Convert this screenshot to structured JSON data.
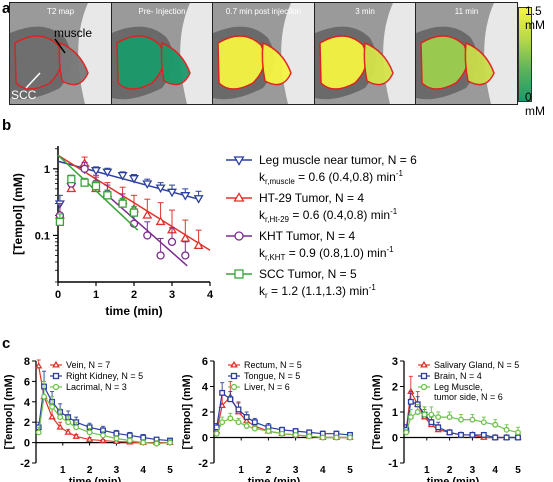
{
  "panel_a": {
    "letter": "a",
    "frames": [
      {
        "label": "T2 map"
      },
      {
        "label": "Pre- Injection"
      },
      {
        "label": "0.7 min post injection"
      },
      {
        "label": "3 min"
      },
      {
        "label": "11 min"
      }
    ],
    "annotations": {
      "muscle": "muscle",
      "scc": "SCC"
    },
    "colorbar": {
      "max_label": "1.5 mM",
      "min_label": "0 mM",
      "colors": [
        "#1a9a6a",
        "#f5f542"
      ]
    }
  },
  "panel_b": {
    "letter": "b",
    "chart_data": {
      "type": "scatter",
      "xlabel": "time (min)",
      "ylabel": "[Tempol] (mM)",
      "xlim": [
        0,
        4
      ],
      "ylim": [
        0.02,
        2.2
      ],
      "yscale": "log",
      "xticks": [
        "0",
        "1",
        "2",
        "3",
        "4"
      ],
      "yticks": [
        {
          "label": "1",
          "v": 1
        },
        {
          "label": "0.1",
          "v": 0.1
        }
      ],
      "series": [
        {
          "name": "Leg muscle near tumor, N = 6",
          "rate": "k",
          "rate_sub": "r,muscle",
          "rate_val": " = 0.6 (0.4,0.8) min",
          "rate_sup": "-1",
          "color": "#2b3f9e",
          "marker": "tri-down",
          "x": [
            0.05,
            0.35,
            0.7,
            1.0,
            1.3,
            1.7,
            2.0,
            2.35,
            2.7,
            3.0,
            3.35,
            3.7
          ],
          "y": [
            0.3,
            0.55,
            1.0,
            0.95,
            0.9,
            0.8,
            0.72,
            0.6,
            0.52,
            0.45,
            0.4,
            0.36
          ],
          "err": [
            0.1,
            0.15,
            0.15,
            0.12,
            0.12,
            0.1,
            0.1,
            0.1,
            0.1,
            0.12,
            0.1,
            0.1
          ],
          "fit": [
            [
              0.0,
              1.3
            ],
            [
              3.7,
              0.35
            ]
          ]
        },
        {
          "name": "HT-29 Tumor, N = 4",
          "rate": "k",
          "rate_sub": "r,Ht-29",
          "rate_val": " = 0.6 (0.4,0.8) min",
          "rate_sup": "-1",
          "color": "#e0322a",
          "marker": "tri-up",
          "x": [
            0.05,
            0.35,
            0.7,
            1.0,
            1.3,
            1.7,
            2.0,
            2.35,
            2.7,
            3.0,
            3.35,
            3.7
          ],
          "y": [
            0.2,
            0.5,
            1.2,
            0.5,
            0.42,
            0.33,
            0.25,
            0.2,
            0.16,
            0.12,
            0.09,
            0.07
          ],
          "err": [
            0.1,
            0.15,
            0.3,
            0.25,
            0.2,
            0.2,
            0.15,
            0.15,
            0.15,
            0.12,
            0.08,
            0.05
          ],
          "fit": [
            [
              0.0,
              1.6
            ],
            [
              4.0,
              0.06
            ]
          ]
        },
        {
          "name": "KHT Tumor, N = 4",
          "rate": "k",
          "rate_sub": "r,KHT",
          "rate_val": " = 0.9 (0.8,1.0) min",
          "rate_sup": "-1",
          "color": "#7b2d8e",
          "marker": "circle",
          "x": [
            0.05,
            0.35,
            0.7,
            1.0,
            1.3,
            1.7,
            2.0,
            2.35,
            2.7,
            3.0,
            3.35
          ],
          "y": [
            0.2,
            0.6,
            1.0,
            0.6,
            0.42,
            0.3,
            0.15,
            0.1,
            0.05,
            0.08,
            0.05
          ],
          "err": [
            0.1,
            0.2,
            0.25,
            0.2,
            0.15,
            0.12,
            0.08,
            0.06,
            0.04,
            0.05,
            0.03
          ],
          "fit": [
            [
              1.3,
              0.4
            ],
            [
              3.4,
              0.035
            ]
          ]
        },
        {
          "name": "SCC Tumor, N = 5",
          "rate": "k",
          "rate_sub": "r",
          "rate_val": " = 1.2 (1.1,1.3) min",
          "rate_sup": "-1",
          "color": "#3aa33a",
          "marker": "square",
          "x": [
            0.05,
            0.35,
            0.7,
            1.0,
            1.3,
            1.7,
            2.0
          ],
          "y": [
            0.16,
            0.7,
            0.62,
            0.55,
            0.4,
            0.3,
            0.22
          ],
          "err": [
            0.05,
            0.1,
            0.1,
            0.1,
            0.08,
            0.06,
            0.05
          ],
          "fit": [
            [
              0.0,
              1.6
            ],
            [
              2.1,
              0.12
            ]
          ]
        }
      ]
    }
  },
  "panel_c": {
    "letter": "c",
    "charts": [
      {
        "chart_data": {
          "type": "line",
          "xlabel": "time (min)",
          "ylabel": "[Tempol] (mM)",
          "xlim": [
            0,
            5
          ],
          "ylim": [
            -2,
            8
          ],
          "yticks": [
            -2,
            0,
            2,
            4,
            6,
            8
          ],
          "xticks": [
            1,
            2,
            3,
            4,
            5
          ],
          "series": [
            {
              "name": "Vein, N = 7",
              "color": "#e0322a",
              "marker": "tri-up",
              "x": [
                0.1,
                0.3,
                0.6,
                0.9,
                1.2,
                1.5,
                2.0,
                2.5,
                3.0,
                3.5,
                4.0,
                4.5,
                5.0
              ],
              "y": [
                7.5,
                4.5,
                2.5,
                1.5,
                1.0,
                0.6,
                0.3,
                0.2,
                0.1,
                0.05,
                0.0,
                0.0,
                0.0
              ],
              "err": [
                0.6,
                1.5,
                1.0,
                0.5,
                0.3,
                0.2,
                0.2,
                0.1,
                0.1,
                0.1,
                0.1,
                0.1,
                0.1
              ]
            },
            {
              "name": "Right Kidney, N = 5",
              "color": "#2b3f9e",
              "marker": "square",
              "x": [
                0.1,
                0.3,
                0.6,
                0.9,
                1.2,
                1.5,
                2.0,
                2.5,
                3.0,
                3.5,
                4.0,
                4.5,
                5.0
              ],
              "y": [
                1.5,
                5.5,
                4.0,
                3.0,
                2.5,
                2.0,
                1.5,
                1.2,
                0.9,
                0.7,
                0.5,
                0.3,
                0.2
              ],
              "err": [
                0.5,
                1.5,
                1.0,
                0.8,
                0.6,
                0.5,
                0.4,
                0.4,
                0.3,
                0.3,
                0.3,
                0.2,
                0.2
              ]
            },
            {
              "name": "Lacrimal, N = 3",
              "color": "#6ec34a",
              "marker": "circle",
              "x": [
                0.1,
                0.3,
                0.6,
                0.9,
                1.2,
                1.5,
                2.0,
                2.5,
                3.0,
                3.5,
                4.0,
                4.5,
                5.0
              ],
              "y": [
                1.0,
                4.5,
                3.5,
                2.5,
                2.0,
                1.5,
                1.0,
                0.7,
                0.4,
                0.2,
                0.0,
                -0.1,
                0.0
              ],
              "err": [
                0.5,
                1.5,
                1.0,
                0.8,
                0.6,
                0.5,
                0.4,
                0.4,
                0.3,
                0.3,
                0.3,
                0.3,
                0.3
              ]
            }
          ]
        }
      },
      {
        "chart_data": {
          "type": "line",
          "xlabel": "time (min)",
          "ylabel": "[Tempol] (mM)",
          "xlim": [
            0,
            5
          ],
          "ylim": [
            -2,
            6
          ],
          "yticks": [
            -2,
            0,
            2,
            4,
            6
          ],
          "xticks": [
            1,
            2,
            3,
            4,
            5
          ],
          "series": [
            {
              "name": "Rectum, N = 5",
              "color": "#e0322a",
              "marker": "tri-up",
              "x": [
                0.1,
                0.3,
                0.6,
                0.9,
                1.2,
                1.5,
                2.0,
                2.5,
                3.0,
                3.5,
                4.0,
                4.5,
                5.0
              ],
              "y": [
                0.5,
                2.5,
                3.2,
                2.0,
                1.3,
                0.9,
                0.5,
                0.3,
                0.2,
                0.1,
                0.0,
                0.0,
                0.0
              ],
              "err": [
                0.3,
                1.0,
                1.2,
                0.8,
                0.5,
                0.3,
                0.2,
                0.2,
                0.1,
                0.1,
                0.1,
                0.1,
                0.1
              ]
            },
            {
              "name": "Tongue, N = 5",
              "color": "#2b3f9e",
              "marker": "square",
              "x": [
                0.1,
                0.3,
                0.6,
                0.9,
                1.2,
                1.5,
                2.0,
                2.5,
                3.0,
                3.5,
                4.0,
                4.5,
                5.0
              ],
              "y": [
                0.8,
                3.5,
                3.0,
                2.2,
                1.6,
                1.2,
                0.8,
                0.6,
                0.5,
                0.4,
                0.3,
                0.3,
                0.2
              ],
              "err": [
                0.3,
                0.8,
                0.6,
                0.5,
                0.4,
                0.3,
                0.3,
                0.2,
                0.2,
                0.2,
                0.2,
                0.2,
                0.2
              ]
            },
            {
              "name": "Liver, N = 6",
              "color": "#6ec34a",
              "marker": "circle",
              "x": [
                0.1,
                0.3,
                0.6,
                0.9,
                1.2,
                1.5,
                2.0,
                2.5,
                3.0,
                3.5,
                4.0,
                4.5,
                5.0
              ],
              "y": [
                0.3,
                1.2,
                1.5,
                1.2,
                0.9,
                0.7,
                0.5,
                0.3,
                0.2,
                0.1,
                0.0,
                0.0,
                0.0
              ],
              "err": [
                0.2,
                0.4,
                0.4,
                0.3,
                0.3,
                0.2,
                0.2,
                0.1,
                0.1,
                0.1,
                0.1,
                0.1,
                0.1
              ]
            }
          ]
        }
      },
      {
        "chart_data": {
          "type": "line",
          "xlabel": "time (min)",
          "ylabel": "[Tempol] (mM)",
          "xlim": [
            0,
            5
          ],
          "ylim": [
            -1,
            3
          ],
          "yticks": [
            -1,
            0,
            1,
            2,
            3
          ],
          "xticks": [
            1,
            2,
            3,
            4,
            5
          ],
          "series": [
            {
              "name": "Salivary Gland, N = 5",
              "color": "#e0322a",
              "marker": "tri-up",
              "x": [
                0.1,
                0.3,
                0.6,
                0.9,
                1.2,
                1.5,
                2.0,
                2.5,
                3.0,
                3.5,
                4.0,
                4.5,
                5.0
              ],
              "y": [
                0.3,
                1.8,
                1.3,
                0.8,
                0.5,
                0.3,
                0.2,
                0.1,
                0.1,
                0.0,
                0.0,
                0.0,
                0.0
              ],
              "err": [
                0.2,
                0.6,
                0.5,
                0.3,
                0.2,
                0.2,
                0.1,
                0.1,
                0.1,
                0.1,
                0.1,
                0.1,
                0.1
              ]
            },
            {
              "name": "Brain, N = 4",
              "color": "#2b3f9e",
              "marker": "square",
              "x": [
                0.1,
                0.3,
                0.6,
                0.9,
                1.2,
                1.5,
                2.0,
                2.5,
                3.0,
                3.5,
                4.0,
                4.5,
                5.0
              ],
              "y": [
                0.3,
                1.4,
                1.3,
                0.9,
                0.6,
                0.4,
                0.2,
                0.1,
                0.1,
                0.1,
                0.0,
                0.0,
                0.0
              ],
              "err": [
                0.2,
                0.4,
                0.3,
                0.3,
                0.2,
                0.2,
                0.1,
                0.1,
                0.1,
                0.1,
                0.1,
                0.1,
                0.1
              ]
            },
            {
              "name": "Leg Muscle, tumor side, N = 6",
              "color": "#6ec34a",
              "marker": "circle",
              "x": [
                0.1,
                0.3,
                0.6,
                0.9,
                1.2,
                1.5,
                2.0,
                2.5,
                3.0,
                3.5,
                4.0,
                4.5,
                5.0
              ],
              "y": [
                0.2,
                0.8,
                1.0,
                0.9,
                0.9,
                0.8,
                0.8,
                0.7,
                0.7,
                0.6,
                0.5,
                0.3,
                0.2
              ],
              "err": [
                0.1,
                0.3,
                0.3,
                0.3,
                0.3,
                0.2,
                0.2,
                0.2,
                0.2,
                0.2,
                0.2,
                0.2,
                0.2
              ]
            }
          ]
        }
      }
    ]
  }
}
